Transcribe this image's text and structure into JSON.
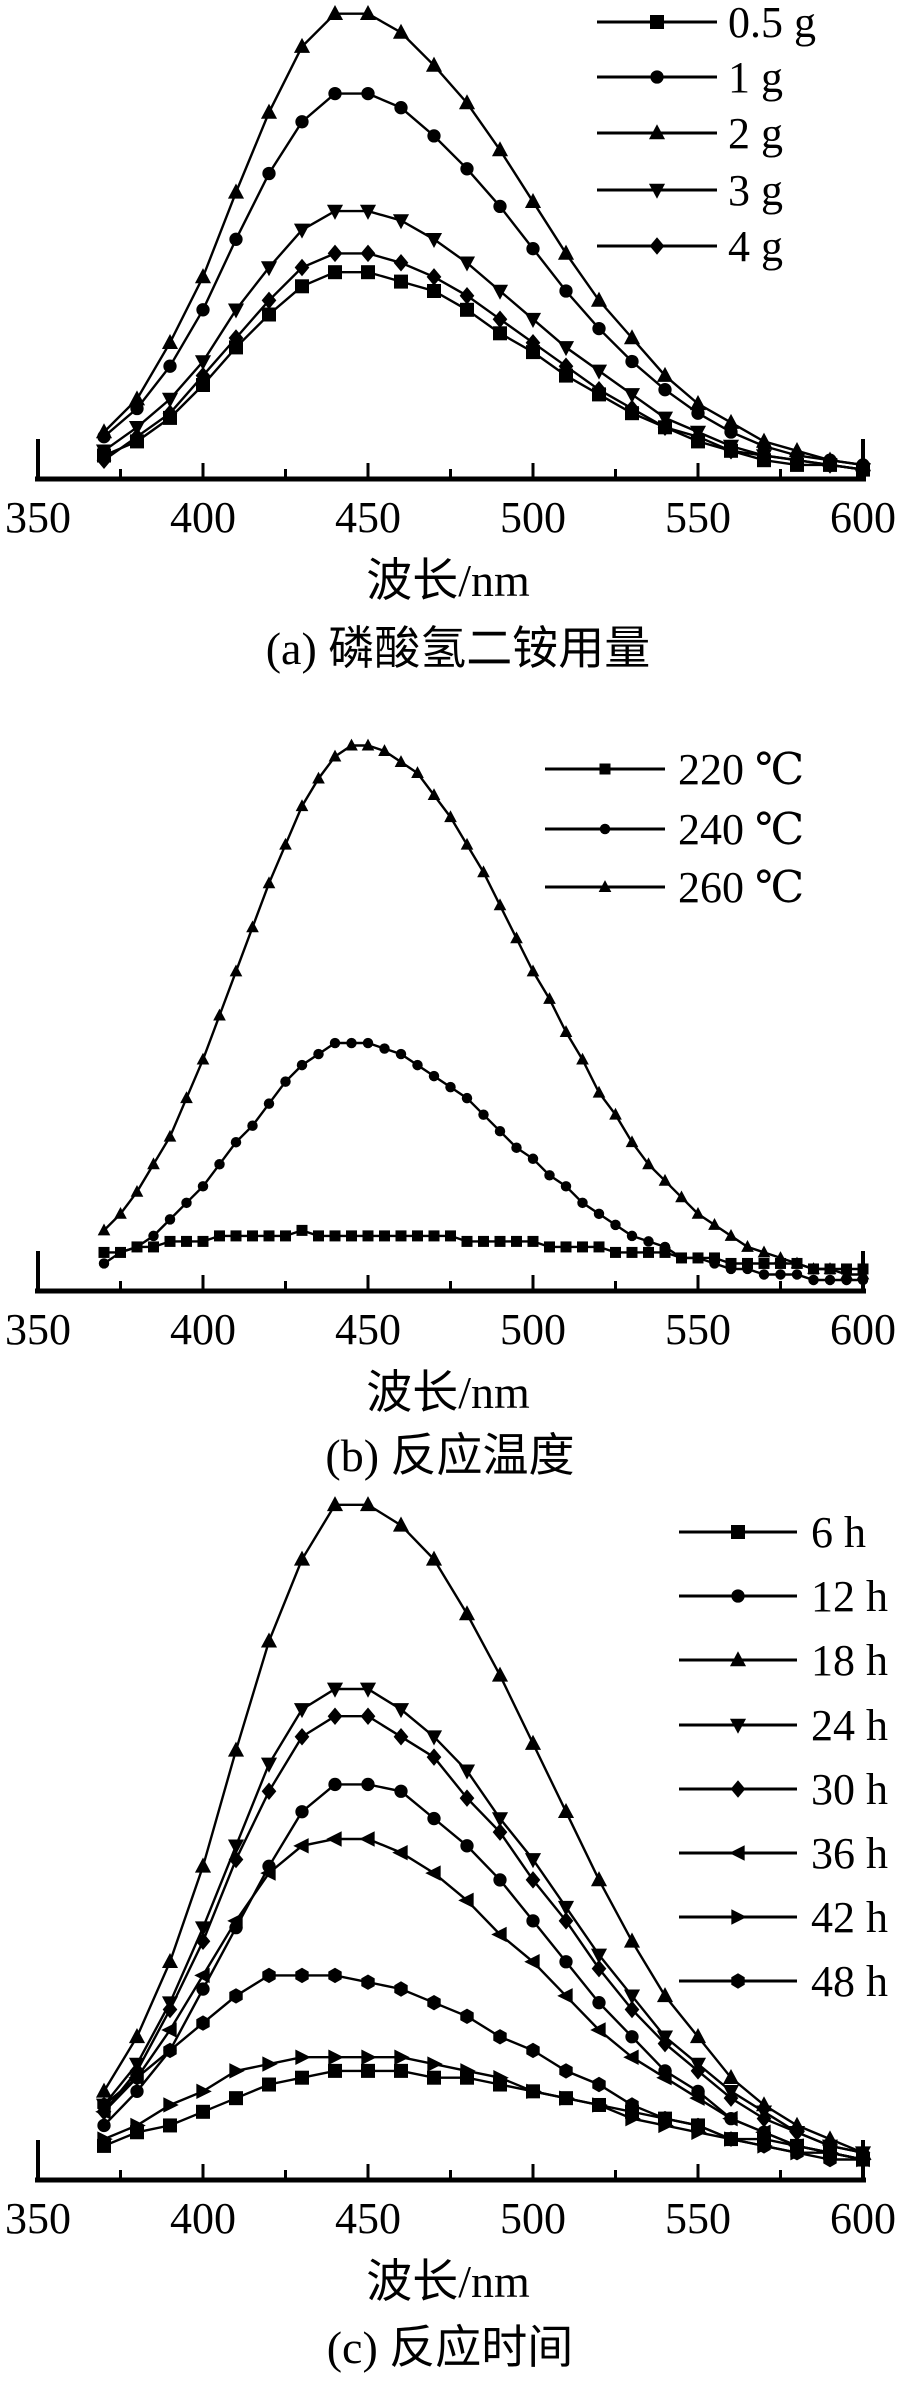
{
  "figure": {
    "background": "#ffffff",
    "ink": "#000000",
    "description_visible_text_only": true
  },
  "chart_data": [
    {
      "type": "line",
      "panel": "a",
      "caption": "(a) 磷酸氢二铵用量",
      "xlabel": "波长/nm",
      "ylabel": "",
      "y_axis_visible": false,
      "x_range": [
        350,
        600
      ],
      "x_ticks": [
        350,
        400,
        450,
        500,
        550,
        600
      ],
      "x_tick_labels": [
        "350",
        "400",
        "450",
        "500",
        "550",
        "600"
      ],
      "x_minor_ticks": [
        375,
        425,
        475,
        525,
        575
      ],
      "legend_position": "top-right",
      "x": [
        370,
        380,
        390,
        400,
        410,
        420,
        430,
        440,
        450,
        460,
        470,
        480,
        490,
        500,
        510,
        520,
        530,
        540,
        550,
        560,
        570,
        580,
        590,
        600
      ],
      "series": [
        {
          "name": "0.5 g",
          "marker": "square",
          "values": [
            5,
            8,
            13,
            20,
            28,
            35,
            41,
            44,
            44,
            42,
            40,
            36,
            31,
            27,
            22,
            18,
            14,
            11,
            8,
            6,
            4,
            3,
            3,
            2
          ]
        },
        {
          "name": "1 g",
          "marker": "circle",
          "values": [
            9,
            15,
            24,
            36,
            51,
            65,
            76,
            82,
            82,
            79,
            73,
            66,
            58,
            49,
            40,
            32,
            25,
            19,
            14,
            10,
            7,
            5,
            4,
            3
          ]
        },
        {
          "name": "2 g",
          "marker": "triangle-up",
          "values": [
            10,
            17,
            29,
            43,
            61,
            78,
            92,
            99,
            99,
            95,
            88,
            80,
            70,
            59,
            48,
            38,
            30,
            22,
            16,
            12,
            8,
            6,
            4,
            3
          ]
        },
        {
          "name": "3 g",
          "marker": "triangle-down",
          "values": [
            6,
            11,
            17,
            25,
            36,
            45,
            53,
            57,
            57,
            55,
            51,
            46,
            40,
            34,
            28,
            23,
            18,
            13,
            10,
            7,
            5,
            4,
            3,
            2
          ]
        },
        {
          "name": "4 g",
          "marker": "diamond",
          "values": [
            4,
            9,
            14,
            22,
            30,
            38,
            45,
            48,
            48,
            46,
            43,
            39,
            34,
            29,
            24,
            19,
            15,
            11,
            9,
            6,
            5,
            4,
            3,
            2
          ]
        }
      ]
    },
    {
      "type": "line",
      "panel": "b",
      "caption": "(b) 反应温度",
      "xlabel": "波长/nm",
      "ylabel": "",
      "y_axis_visible": false,
      "x_range": [
        350,
        600
      ],
      "x_ticks": [
        350,
        400,
        450,
        500,
        550,
        600
      ],
      "x_tick_labels": [
        "350",
        "400",
        "450",
        "500",
        "550",
        "600"
      ],
      "x_minor_ticks": [
        375,
        425,
        475,
        525,
        575
      ],
      "legend_position": "top-right",
      "x": [
        370,
        375,
        380,
        385,
        390,
        395,
        400,
        405,
        410,
        415,
        420,
        425,
        430,
        435,
        440,
        445,
        450,
        455,
        460,
        465,
        470,
        475,
        480,
        485,
        490,
        495,
        500,
        505,
        510,
        515,
        520,
        525,
        530,
        535,
        540,
        545,
        550,
        555,
        560,
        565,
        570,
        575,
        580,
        585,
        590,
        595,
        600
      ],
      "series": [
        {
          "name": "220 ℃",
          "marker": "square",
          "values": [
            7,
            7,
            8,
            8,
            9,
            9,
            9,
            10,
            10,
            10,
            10,
            10,
            11,
            10,
            10,
            10,
            10,
            10,
            10,
            10,
            10,
            10,
            9,
            9,
            9,
            9,
            9,
            8,
            8,
            8,
            8,
            7,
            7,
            7,
            7,
            6,
            6,
            6,
            5,
            5,
            5,
            5,
            5,
            4,
            4,
            4,
            4
          ]
        },
        {
          "name": "240 ℃",
          "marker": "circle",
          "values": [
            5,
            7,
            8,
            10,
            13,
            16,
            19,
            23,
            27,
            30,
            34,
            38,
            41,
            43,
            45,
            45,
            45,
            44,
            43,
            41,
            39,
            37,
            35,
            32,
            29,
            26,
            24,
            21,
            19,
            16,
            14,
            12,
            10,
            9,
            8,
            6,
            6,
            5,
            4,
            4,
            3,
            3,
            3,
            2,
            2,
            2,
            2
          ]
        },
        {
          "name": "260 ℃",
          "marker": "triangle-up",
          "values": [
            11,
            14,
            18,
            23,
            28,
            35,
            42,
            50,
            58,
            66,
            74,
            81,
            88,
            93,
            97,
            99,
            99,
            98,
            96,
            94,
            90,
            86,
            81,
            76,
            70,
            64,
            58,
            53,
            47,
            42,
            36,
            32,
            27,
            23,
            20,
            17,
            14,
            12,
            10,
            8,
            7,
            6,
            5,
            4,
            4,
            3,
            3
          ]
        }
      ]
    },
    {
      "type": "line",
      "panel": "c",
      "caption": "(c) 反应时间",
      "xlabel": "波长/nm",
      "ylabel": "",
      "y_axis_visible": false,
      "x_range": [
        350,
        600
      ],
      "x_ticks": [
        350,
        400,
        450,
        500,
        550,
        600
      ],
      "x_tick_labels": [
        "350",
        "400",
        "450",
        "500",
        "550",
        "600"
      ],
      "x_minor_ticks": [
        375,
        425,
        475,
        525,
        575
      ],
      "legend_position": "top-right",
      "x": [
        370,
        380,
        390,
        400,
        410,
        420,
        430,
        440,
        450,
        460,
        470,
        480,
        490,
        500,
        510,
        520,
        530,
        540,
        550,
        560,
        570,
        580,
        590,
        600
      ],
      "series": [
        {
          "name": "6 h",
          "marker": "square",
          "values": [
            5,
            7,
            8,
            10,
            12,
            14,
            15,
            16,
            16,
            16,
            15,
            15,
            14,
            13,
            12,
            11,
            10,
            9,
            8,
            6,
            6,
            5,
            4,
            3
          ]
        },
        {
          "name": "12 h",
          "marker": "circle",
          "values": [
            8,
            13,
            19,
            28,
            37,
            46,
            54,
            58,
            58,
            57,
            53,
            49,
            44,
            38,
            32,
            26,
            21,
            16,
            13,
            9,
            7,
            5,
            4,
            3
          ]
        },
        {
          "name": "18 h",
          "marker": "triangle-up",
          "values": [
            13,
            21,
            32,
            46,
            63,
            79,
            91,
            99,
            99,
            96,
            91,
            83,
            74,
            64,
            54,
            44,
            35,
            27,
            21,
            15,
            11,
            8,
            6,
            4
          ]
        },
        {
          "name": "24 h",
          "marker": "triangle-down",
          "values": [
            11,
            17,
            26,
            37,
            49,
            61,
            69,
            72,
            72,
            69,
            65,
            60,
            53,
            47,
            40,
            33,
            27,
            21,
            17,
            13,
            10,
            7,
            5,
            4
          ]
        },
        {
          "name": "30 h",
          "marker": "diamond",
          "values": [
            10,
            16,
            25,
            35,
            47,
            57,
            65,
            68,
            68,
            65,
            62,
            56,
            51,
            44,
            38,
            31,
            25,
            20,
            16,
            12,
            9,
            7,
            5,
            4
          ]
        },
        {
          "name": "36 h",
          "marker": "triangle-left",
          "values": [
            10,
            15,
            22,
            30,
            38,
            45,
            49,
            50,
            50,
            48,
            45,
            41,
            36,
            32,
            27,
            22,
            18,
            15,
            12,
            9,
            7,
            5,
            4,
            3
          ]
        },
        {
          "name": "42 h",
          "marker": "triangle-right",
          "values": [
            6,
            8,
            11,
            13,
            16,
            17,
            18,
            18,
            18,
            18,
            17,
            16,
            15,
            13,
            12,
            11,
            9,
            8,
            7,
            6,
            5,
            4,
            4,
            3
          ]
        },
        {
          "name": "48 h",
          "marker": "hexagon",
          "values": [
            11,
            15,
            19,
            23,
            27,
            30,
            30,
            30,
            29,
            28,
            26,
            24,
            21,
            19,
            16,
            14,
            11,
            9,
            8,
            6,
            5,
            4,
            3,
            3
          ]
        }
      ]
    }
  ]
}
